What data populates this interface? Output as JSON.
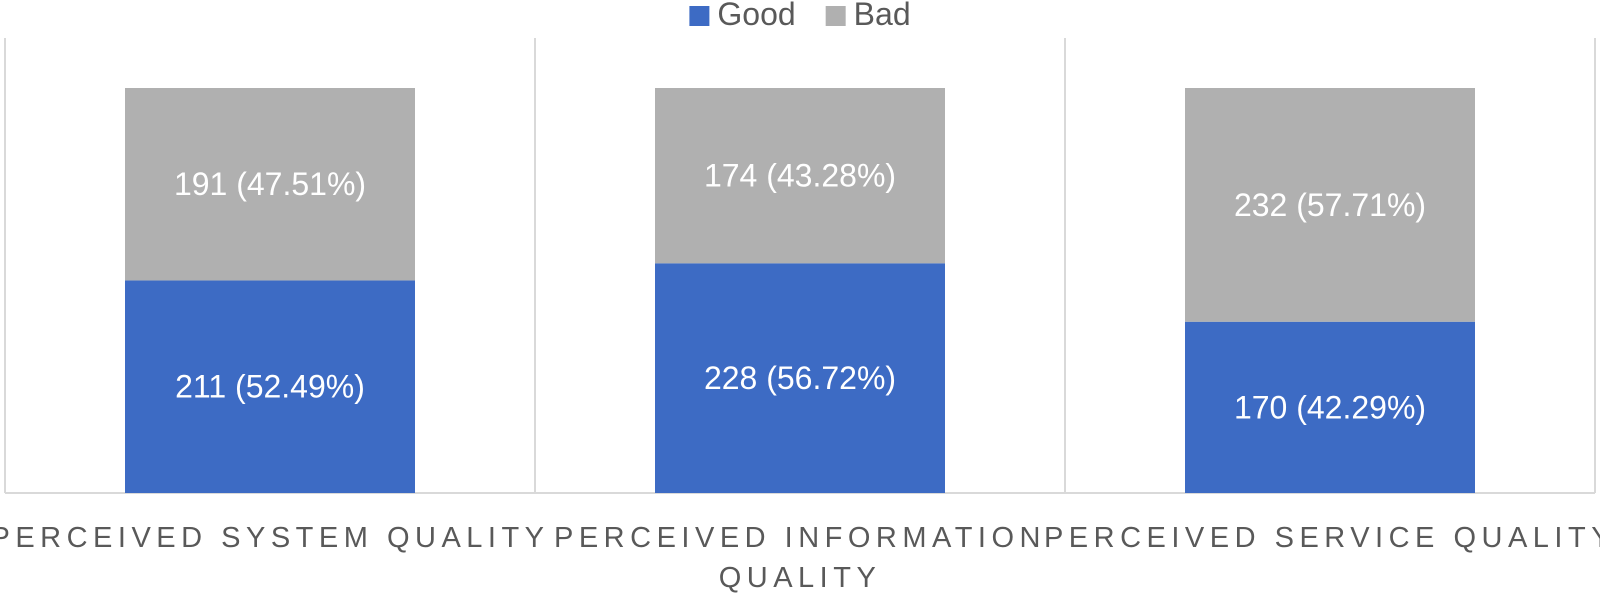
{
  "chart_data": {
    "type": "bar",
    "stacked": true,
    "categories": [
      [
        "PERCEIVED SYSTEM QUALITY"
      ],
      [
        "PERCEIVED INFORMATION",
        "QUALITY"
      ],
      [
        "PERCEIVED SERVICE QUALITY"
      ]
    ],
    "series": [
      {
        "name": "Good",
        "color": "#3d6bc4",
        "values": [
          211,
          228,
          170
        ],
        "labels": [
          "211 (52.49%)",
          "228 (56.72%)",
          "170 (42.29%)"
        ]
      },
      {
        "name": "Bad",
        "color": "#b0b0b0",
        "values": [
          191,
          174,
          232
        ],
        "labels": [
          "191 (47.51%)",
          "174 (43.28%)",
          "232 (57.71%)"
        ]
      }
    ],
    "legend_position": "top",
    "grid": false,
    "title": "",
    "xlabel": "",
    "ylabel": ""
  }
}
